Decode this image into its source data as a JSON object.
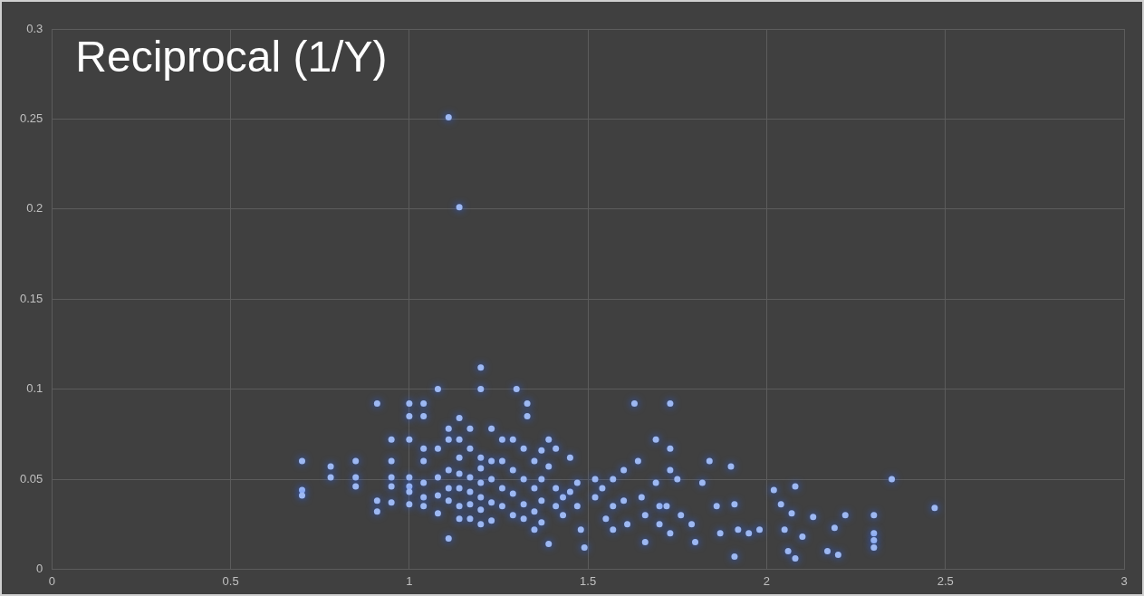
{
  "chart_data": {
    "type": "scatter",
    "title": "Reciprocal (1/Y)",
    "xlim": [
      0,
      3
    ],
    "xticks": [
      0,
      0.5,
      1,
      1.5,
      2,
      2.5,
      3
    ],
    "ylim": [
      0,
      0.3
    ],
    "yticks": [
      0,
      0.05,
      0.1,
      0.15,
      0.2,
      0.25,
      0.3
    ],
    "grid": true,
    "marker": "circle",
    "series": [
      {
        "color": "#9db8f2",
        "x": [
          1.11,
          1.14,
          1.2,
          1.3,
          1.2,
          1.08,
          0.91,
          1.0,
          1.04,
          1.33,
          1.63,
          1.73,
          1.33,
          1.0,
          1.04,
          0.7,
          0.7,
          0.7,
          0.78,
          0.78,
          0.85,
          0.85,
          0.85,
          0.91,
          0.91,
          0.95,
          0.95,
          0.95,
          0.95,
          0.95,
          1.0,
          1.0,
          1.0,
          1.0,
          1.0,
          1.04,
          1.04,
          1.04,
          1.04,
          1.04,
          1.08,
          1.08,
          1.08,
          1.08,
          1.11,
          1.11,
          1.11,
          1.11,
          1.11,
          1.11,
          1.14,
          1.14,
          1.14,
          1.14,
          1.14,
          1.14,
          1.14,
          1.17,
          1.17,
          1.17,
          1.17,
          1.17,
          1.17,
          1.2,
          1.2,
          1.2,
          1.2,
          1.2,
          1.2,
          1.23,
          1.23,
          1.23,
          1.23,
          1.23,
          1.26,
          1.26,
          1.26,
          1.26,
          1.29,
          1.29,
          1.29,
          1.29,
          1.32,
          1.32,
          1.32,
          1.32,
          1.35,
          1.35,
          1.35,
          1.35,
          1.37,
          1.37,
          1.37,
          1.37,
          1.39,
          1.39,
          1.39,
          1.41,
          1.41,
          1.41,
          1.43,
          1.43,
          1.45,
          1.45,
          1.47,
          1.47,
          1.48,
          1.49,
          1.52,
          1.52,
          1.54,
          1.55,
          1.57,
          1.57,
          1.57,
          1.6,
          1.6,
          1.61,
          1.64,
          1.65,
          1.66,
          1.66,
          1.69,
          1.69,
          1.7,
          1.7,
          1.73,
          1.73,
          1.72,
          1.73,
          1.75,
          1.76,
          1.79,
          1.8,
          1.82,
          1.84,
          1.86,
          1.87,
          1.9,
          1.91,
          1.92,
          1.91,
          1.95,
          1.98,
          2.02,
          2.04,
          2.05,
          2.06,
          2.08,
          2.07,
          2.08,
          2.1,
          2.13,
          2.17,
          2.19,
          2.2,
          2.22,
          2.3,
          2.3,
          2.3,
          2.3,
          2.35,
          2.47
        ],
        "values": [
          0.251,
          0.201,
          0.112,
          0.1,
          0.1,
          0.1,
          0.092,
          0.092,
          0.092,
          0.092,
          0.092,
          0.092,
          0.085,
          0.085,
          0.085,
          0.06,
          0.044,
          0.041,
          0.057,
          0.051,
          0.06,
          0.051,
          0.046,
          0.038,
          0.032,
          0.072,
          0.06,
          0.051,
          0.046,
          0.037,
          0.072,
          0.051,
          0.046,
          0.043,
          0.036,
          0.067,
          0.06,
          0.048,
          0.04,
          0.035,
          0.067,
          0.051,
          0.041,
          0.031,
          0.078,
          0.072,
          0.055,
          0.045,
          0.038,
          0.017,
          0.084,
          0.072,
          0.062,
          0.053,
          0.045,
          0.035,
          0.028,
          0.078,
          0.067,
          0.051,
          0.043,
          0.036,
          0.028,
          0.062,
          0.056,
          0.048,
          0.04,
          0.033,
          0.025,
          0.078,
          0.06,
          0.05,
          0.037,
          0.027,
          0.072,
          0.06,
          0.045,
          0.035,
          0.072,
          0.055,
          0.042,
          0.03,
          0.067,
          0.05,
          0.036,
          0.028,
          0.06,
          0.045,
          0.032,
          0.022,
          0.066,
          0.05,
          0.038,
          0.026,
          0.072,
          0.057,
          0.014,
          0.067,
          0.045,
          0.035,
          0.04,
          0.03,
          0.062,
          0.043,
          0.048,
          0.035,
          0.022,
          0.012,
          0.05,
          0.04,
          0.045,
          0.028,
          0.05,
          0.035,
          0.022,
          0.055,
          0.038,
          0.025,
          0.06,
          0.04,
          0.03,
          0.015,
          0.072,
          0.048,
          0.035,
          0.025,
          0.067,
          0.055,
          0.035,
          0.02,
          0.05,
          0.03,
          0.025,
          0.015,
          0.048,
          0.06,
          0.035,
          0.02,
          0.057,
          0.036,
          0.022,
          0.007,
          0.02,
          0.022,
          0.044,
          0.036,
          0.022,
          0.01,
          0.046,
          0.031,
          0.006,
          0.018,
          0.029,
          0.01,
          0.023,
          0.008,
          0.03,
          0.03,
          0.02,
          0.016,
          0.012,
          0.05,
          0.034
        ]
      }
    ]
  }
}
